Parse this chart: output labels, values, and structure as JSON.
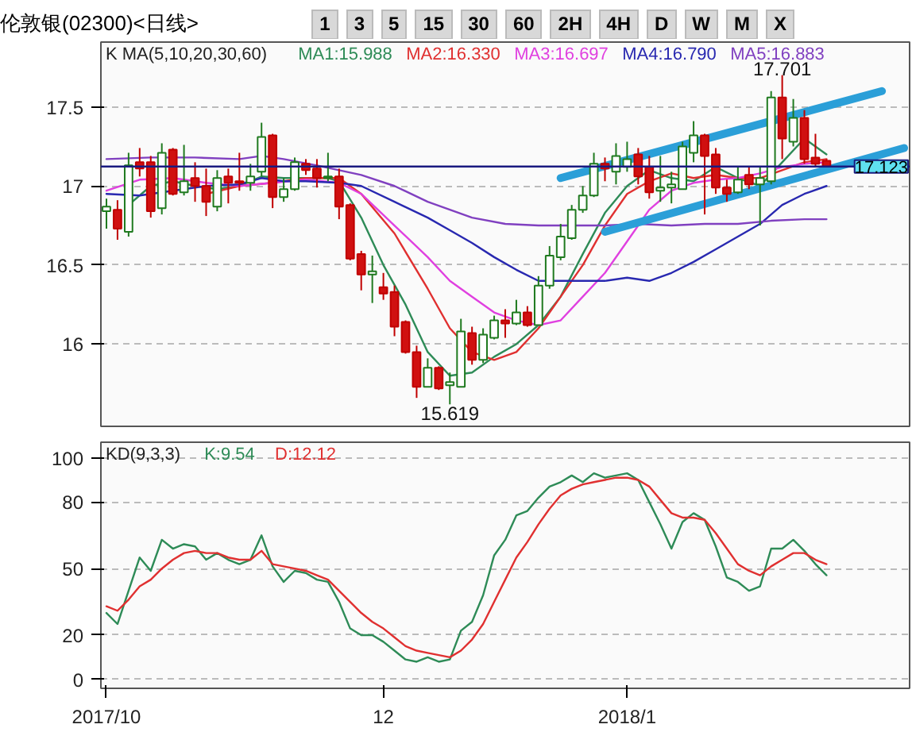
{
  "chart_data": [
    {
      "type": "candlestick",
      "title": "伦敦银(02300)<日线>",
      "legend_title": "K MA(5,10,20,30,60)",
      "legend": "top",
      "grid": "y",
      "tick_labels": "y",
      "annotations": [
        "1",
        "3",
        "5",
        "15",
        "30",
        "60",
        "2H",
        "4H",
        "D",
        "W",
        "M",
        "X",
        {
          "text": "17.701",
          "y": 17.701
        },
        {
          "text": "15.619",
          "y": 15.619
        }
      ],
      "categories": [
        null,
        null,
        null,
        null,
        null,
        null,
        null,
        null,
        null,
        null,
        null,
        null,
        null,
        null,
        null,
        null,
        null,
        null,
        null,
        null,
        null,
        null,
        null,
        null,
        null,
        null,
        null,
        null,
        null,
        null,
        null,
        null,
        null,
        null,
        null,
        null,
        null,
        null,
        null,
        null,
        null,
        null,
        null,
        null,
        null,
        null,
        null,
        null,
        null,
        null,
        null,
        null,
        null,
        null,
        null,
        null,
        null,
        null,
        null,
        null,
        null,
        null,
        null,
        null,
        null,
        null,
        null,
        null,
        null,
        null,
        null,
        null,
        null
      ],
      "ohlc": [
        [
          16.84,
          16.92,
          16.73,
          16.87
        ],
        [
          16.85,
          16.91,
          16.66,
          16.73
        ],
        [
          16.71,
          17.21,
          16.68,
          17.13
        ],
        [
          17.15,
          17.24,
          17.06,
          17.11
        ],
        [
          17.15,
          17.19,
          16.8,
          16.84
        ],
        [
          16.86,
          17.27,
          16.82,
          17.21
        ],
        [
          17.23,
          17.24,
          16.94,
          16.95
        ],
        [
          16.96,
          17.26,
          16.94,
          17.03
        ],
        [
          17.05,
          17.15,
          16.9,
          17.0
        ],
        [
          17.0,
          17.11,
          16.81,
          16.9
        ],
        [
          16.87,
          17.1,
          16.84,
          17.05
        ],
        [
          17.06,
          17.11,
          16.89,
          17.02
        ],
        [
          17.03,
          17.21,
          16.97,
          17.02
        ],
        [
          17.02,
          17.14,
          16.97,
          17.06
        ],
        [
          17.09,
          17.4,
          17.06,
          17.31
        ],
        [
          17.32,
          17.33,
          16.86,
          16.93
        ],
        [
          16.93,
          17.05,
          16.9,
          16.98
        ],
        [
          16.98,
          17.18,
          16.97,
          17.15
        ],
        [
          17.14,
          17.17,
          17.07,
          17.1
        ],
        [
          17.11,
          17.17,
          16.99,
          17.05
        ],
        [
          17.05,
          17.21,
          17.03,
          17.06
        ],
        [
          17.06,
          17.11,
          16.79,
          16.87
        ],
        [
          16.88,
          16.89,
          16.53,
          16.54
        ],
        [
          16.57,
          16.59,
          16.34,
          16.44
        ],
        [
          16.44,
          16.56,
          16.26,
          16.46
        ],
        [
          16.36,
          16.45,
          16.28,
          16.32
        ],
        [
          16.33,
          16.37,
          16.05,
          16.11
        ],
        [
          16.14,
          16.15,
          15.94,
          15.95
        ],
        [
          15.95,
          15.99,
          15.66,
          15.73
        ],
        [
          15.73,
          15.91,
          15.73,
          15.85
        ],
        [
          15.85,
          15.86,
          15.71,
          15.72
        ],
        [
          15.74,
          15.82,
          15.619,
          15.76
        ],
        [
          15.73,
          16.16,
          15.73,
          16.08
        ],
        [
          16.07,
          16.11,
          15.87,
          15.9
        ],
        [
          15.9,
          16.1,
          15.88,
          16.06
        ],
        [
          16.04,
          16.18,
          16.03,
          16.15
        ],
        [
          16.15,
          16.22,
          16.04,
          16.13
        ],
        [
          16.13,
          16.28,
          16.12,
          16.2
        ],
        [
          16.2,
          16.24,
          16.11,
          16.12
        ],
        [
          16.12,
          16.43,
          16.12,
          16.37
        ],
        [
          16.37,
          16.62,
          16.35,
          16.56
        ],
        [
          16.55,
          16.76,
          16.53,
          16.68
        ],
        [
          16.67,
          16.88,
          16.66,
          16.85
        ],
        [
          16.85,
          17.0,
          16.83,
          16.94
        ],
        [
          16.94,
          17.21,
          16.93,
          17.14
        ],
        [
          17.14,
          17.18,
          17.03,
          17.11
        ],
        [
          17.09,
          17.27,
          17.01,
          17.19
        ],
        [
          17.12,
          17.28,
          17.09,
          17.17
        ],
        [
          17.2,
          17.24,
          17.01,
          17.06
        ],
        [
          17.12,
          17.19,
          16.92,
          16.96
        ],
        [
          16.97,
          17.19,
          16.9,
          16.99
        ],
        [
          16.99,
          17.09,
          16.89,
          17.01
        ],
        [
          16.98,
          17.28,
          16.98,
          17.25
        ],
        [
          17.21,
          17.41,
          17.15,
          17.32
        ],
        [
          17.32,
          17.33,
          16.82,
          17.19
        ],
        [
          17.2,
          17.24,
          16.95,
          16.99
        ],
        [
          16.99,
          17.04,
          16.9,
          16.95
        ],
        [
          16.96,
          17.12,
          16.95,
          17.04
        ],
        [
          17.07,
          17.12,
          16.98,
          17.01
        ],
        [
          17.01,
          17.12,
          16.75,
          17.05
        ],
        [
          17.03,
          17.6,
          17.01,
          17.56
        ],
        [
          17.56,
          17.701,
          17.17,
          17.3
        ],
        [
          17.28,
          17.55,
          17.25,
          17.43
        ],
        [
          17.43,
          17.48,
          17.14,
          17.17
        ],
        [
          17.18,
          17.33,
          17.12,
          17.14
        ],
        [
          17.16,
          17.17,
          17.12,
          17.123
        ],
        null,
        null,
        null,
        null,
        null,
        null,
        null
      ],
      "series": [
        {
          "type": "line",
          "name": "MA1:15.988",
          "color": "#2e8b57",
          "values": [
            null,
            null,
            16.88,
            null,
            17.0,
            null,
            17.03,
            null,
            17.0,
            null,
            16.98,
            null,
            17.0,
            null,
            17.06,
            null,
            17.05,
            null,
            17.05,
            null,
            17.05,
            17.03,
            null,
            16.8,
            null,
            16.5,
            null,
            16.25,
            null,
            15.95,
            null,
            15.8,
            null,
            15.82,
            null,
            15.92,
            null,
            16.0,
            null,
            16.12,
            null,
            16.3,
            null,
            16.57,
            null,
            16.83,
            null,
            17.0,
            null,
            17.1,
            null,
            17.05,
            null,
            17.03,
            null,
            17.12,
            null,
            17.05,
            null,
            17.0,
            null,
            17.15,
            null,
            17.3,
            null,
            17.2,
            null,
            null,
            null,
            null,
            null,
            null,
            null
          ]
        },
        {
          "type": "line",
          "name": "MA2:16.330",
          "color": "#e03030",
          "values": [
            null,
            null,
            null,
            null,
            null,
            null,
            null,
            null,
            null,
            16.95,
            null,
            null,
            17.0,
            null,
            null,
            17.02,
            null,
            null,
            17.05,
            null,
            null,
            17.05,
            null,
            16.95,
            null,
            null,
            16.7,
            null,
            null,
            16.35,
            null,
            16.1,
            null,
            15.95,
            null,
            15.9,
            null,
            15.95,
            null,
            16.1,
            null,
            16.3,
            null,
            16.5,
            null,
            16.75,
            null,
            16.95,
            null,
            17.03,
            null,
            17.08,
            null,
            17.05,
            null,
            17.07,
            null,
            17.05,
            null,
            17.05,
            null,
            17.1,
            null,
            17.15,
            null,
            17.17,
            null,
            null,
            null,
            null,
            null,
            null,
            null
          ]
        },
        {
          "type": "line",
          "name": "MA3:16.697",
          "color": "#e040e0",
          "values": [
            16.97,
            null,
            null,
            17.04,
            null,
            null,
            17.05,
            null,
            null,
            17.02,
            null,
            null,
            17.0,
            null,
            null,
            17.02,
            null,
            null,
            17.04,
            null,
            null,
            17.02,
            null,
            16.95,
            null,
            null,
            16.75,
            null,
            null,
            16.55,
            null,
            16.4,
            null,
            16.3,
            null,
            16.2,
            null,
            16.15,
            null,
            16.12,
            null,
            16.15,
            null,
            16.3,
            null,
            16.45,
            null,
            16.65,
            null,
            16.85,
            null,
            16.97,
            null,
            17.02,
            null,
            17.04,
            null,
            17.05,
            null,
            17.08,
            null,
            17.12,
            null,
            17.14,
            null,
            17.15,
            null,
            null,
            null,
            null,
            null,
            null,
            null
          ]
        },
        {
          "type": "line",
          "name": "MA4:16.790",
          "color": "#2828b0",
          "values": [
            16.95,
            null,
            null,
            16.94,
            null,
            null,
            16.97,
            null,
            null,
            17.0,
            null,
            null,
            17.01,
            null,
            17.05,
            null,
            17.03,
            null,
            17.03,
            null,
            null,
            17.02,
            null,
            17.0,
            null,
            null,
            16.9,
            null,
            null,
            16.8,
            null,
            16.72,
            null,
            16.64,
            null,
            16.55,
            null,
            16.47,
            null,
            16.4,
            null,
            16.4,
            null,
            16.4,
            null,
            16.4,
            null,
            16.42,
            null,
            16.4,
            null,
            16.45,
            null,
            16.52,
            null,
            16.6,
            null,
            16.68,
            null,
            16.76,
            null,
            16.88,
            null,
            16.95,
            null,
            17.0,
            null,
            null,
            null,
            null,
            null,
            null,
            null
          ]
        },
        {
          "type": "line",
          "name": "MA5:16.883",
          "color": "#8040c0",
          "values": [
            17.17,
            null,
            null,
            null,
            17.18,
            null,
            null,
            null,
            17.18,
            null,
            null,
            null,
            17.17,
            null,
            17.19,
            null,
            17.17,
            null,
            null,
            17.13,
            null,
            17.1,
            null,
            17.07,
            null,
            null,
            17.0,
            null,
            null,
            16.9,
            null,
            16.85,
            null,
            16.8,
            null,
            null,
            16.76,
            null,
            null,
            16.75,
            null,
            null,
            16.75,
            null,
            null,
            16.75,
            null,
            null,
            16.76,
            null,
            null,
            16.75,
            null,
            null,
            16.76,
            null,
            null,
            16.76,
            null,
            null,
            16.78,
            null,
            null,
            16.79,
            null,
            16.79,
            null,
            null,
            null,
            null,
            null,
            null,
            null
          ]
        },
        {
          "type": "line",
          "color": "#2b9fd8",
          "values": [
            null,
            null,
            null,
            null,
            null,
            null,
            null,
            null,
            null,
            null,
            null,
            null,
            null,
            null,
            null,
            null,
            null,
            null,
            null,
            null,
            null,
            null,
            null,
            null,
            null,
            null,
            null,
            null,
            null,
            null,
            null,
            null,
            null,
            null,
            null,
            null,
            null,
            null,
            null,
            null,
            null,
            17.05,
            null,
            null,
            null,
            null,
            null,
            null,
            null,
            null,
            null,
            null,
            null,
            null,
            null,
            null,
            null,
            null,
            null,
            null,
            null,
            null,
            null,
            null,
            null,
            null,
            null,
            null,
            null,
            null,
            17.6,
            null,
            null
          ]
        },
        {
          "type": "line",
          "color": "#2b9fd8",
          "values": [
            null,
            null,
            null,
            null,
            null,
            null,
            null,
            null,
            null,
            null,
            null,
            null,
            null,
            null,
            null,
            null,
            null,
            null,
            null,
            null,
            null,
            null,
            null,
            null,
            null,
            null,
            null,
            null,
            null,
            null,
            null,
            null,
            null,
            null,
            null,
            null,
            null,
            null,
            null,
            null,
            null,
            null,
            null,
            null,
            null,
            16.71,
            null,
            null,
            null,
            null,
            null,
            null,
            null,
            null,
            null,
            null,
            null,
            null,
            null,
            null,
            null,
            null,
            null,
            null,
            null,
            null,
            null,
            null,
            null,
            null,
            null,
            null,
            17.24
          ]
        }
      ],
      "ref_lines": [
        {
          "axis": "y",
          "value": 17.123,
          "label": "17.123",
          "color": "#1a1a80"
        }
      ],
      "ylim": [
        15.48,
        17.91
      ],
      "yticks": [
        16,
        16.5,
        17,
        17.5
      ]
    },
    {
      "type": "line",
      "legend_title": "KD(9,3,3)",
      "legend": "top left",
      "grid": "y",
      "categories": [
        "2017/10",
        null,
        null,
        null,
        null,
        null,
        null,
        null,
        null,
        null,
        null,
        null,
        null,
        null,
        null,
        null,
        null,
        null,
        null,
        null,
        null,
        null,
        null,
        null,
        null,
        "12",
        null,
        null,
        null,
        null,
        null,
        null,
        null,
        null,
        null,
        null,
        null,
        null,
        null,
        null,
        null,
        null,
        null,
        null,
        null,
        null,
        null,
        "2018/1",
        null,
        null,
        null,
        null,
        null,
        null,
        null,
        null,
        null,
        null,
        null,
        null,
        null,
        null,
        null,
        null,
        null,
        null,
        null,
        null,
        null,
        null,
        null,
        null,
        null
      ],
      "series": [
        {
          "name": "K:9.54",
          "color": "#2e8b57",
          "values": [
            30,
            25,
            40,
            55,
            49,
            63,
            59,
            61,
            60,
            54,
            57,
            54,
            52,
            54,
            65,
            51,
            44,
            49,
            48,
            45,
            44,
            35,
            23,
            20,
            20,
            17,
            13,
            9,
            8,
            10,
            8,
            9,
            22,
            26,
            38,
            56,
            63,
            74,
            76,
            82,
            87,
            89,
            92,
            89,
            93,
            91,
            92,
            93,
            90,
            80,
            70,
            59,
            71,
            75,
            72,
            60,
            46,
            44,
            40,
            42,
            59,
            59,
            63,
            58,
            52,
            47,
            null,
            null,
            null,
            null,
            null,
            null,
            null
          ]
        },
        {
          "name": "D:12.12",
          "color": "#e03030",
          "values": [
            33,
            31,
            36,
            42,
            45,
            50,
            54,
            57,
            58,
            57,
            57,
            55,
            54,
            54,
            58,
            52,
            51,
            50,
            49,
            47,
            45,
            40,
            35,
            30,
            26,
            23,
            19,
            15,
            13,
            12,
            11,
            10,
            13,
            18,
            25,
            35,
            45,
            55,
            62,
            70,
            77,
            83,
            86,
            88,
            89,
            90,
            91,
            91,
            90,
            87,
            81,
            75,
            73,
            73,
            72,
            66,
            59,
            52,
            49,
            47,
            51,
            54,
            57,
            57,
            54,
            52,
            null,
            null,
            null,
            null,
            null,
            null,
            null
          ]
        }
      ],
      "ylim": [
        -4,
        107
      ],
      "yticks": [
        0,
        20,
        50,
        80,
        100
      ]
    }
  ]
}
